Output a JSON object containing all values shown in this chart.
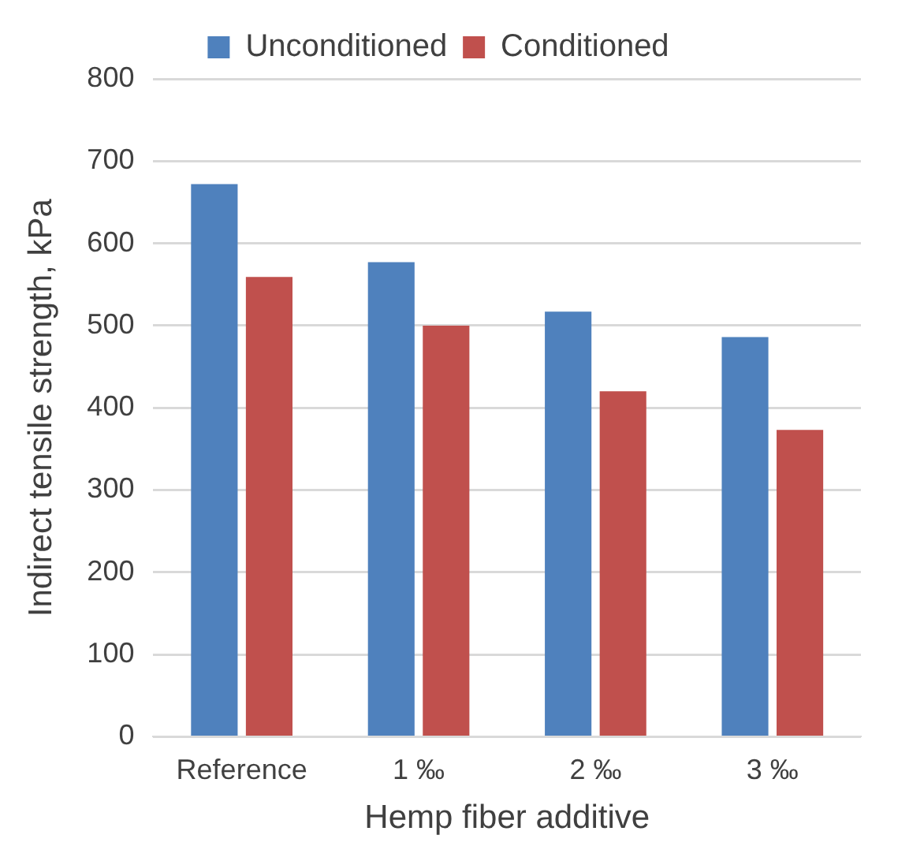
{
  "chart_data": {
    "type": "bar",
    "xlabel": "Hemp fiber additive",
    "ylabel": "Indirect tensile strength, kPa",
    "categories": [
      "Reference",
      "1 ‰",
      "2 ‰",
      "3 ‰"
    ],
    "series": [
      {
        "name": "Unconditioned",
        "color": "#4f81bd",
        "values": [
          672,
          577,
          517,
          486
        ]
      },
      {
        "name": "Conditioned",
        "color": "#c0504d",
        "values": [
          559,
          500,
          420,
          373
        ]
      }
    ],
    "ylim": [
      0,
      800
    ],
    "yticks": [
      0,
      100,
      200,
      300,
      400,
      500,
      600,
      700,
      800
    ],
    "grid": "y",
    "legend": "top"
  }
}
